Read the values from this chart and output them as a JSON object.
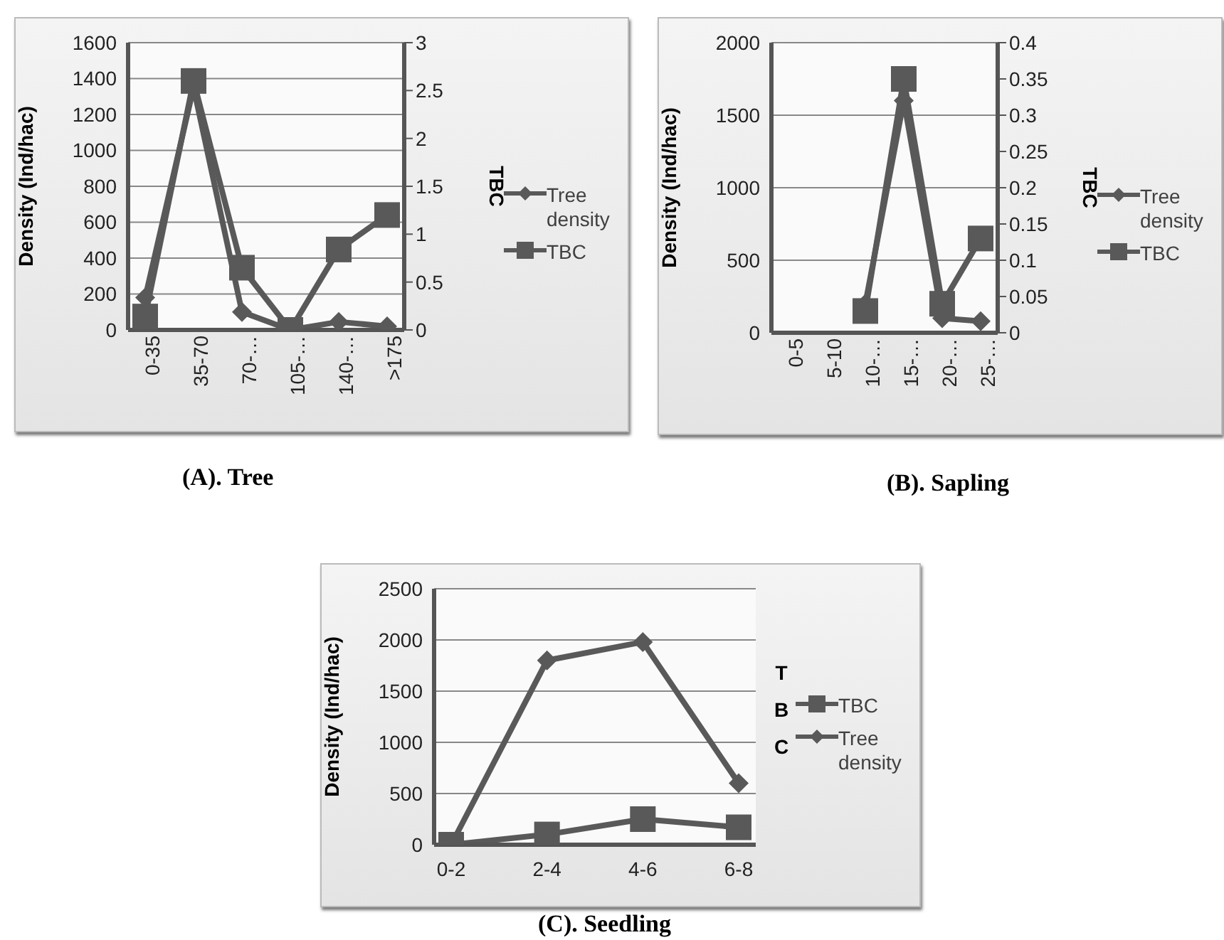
{
  "chart_data": [
    {
      "type": "line",
      "title": "(A). Tree",
      "ylabel": "Density (Ind/hac)",
      "y2label": "TBC",
      "categories": [
        "0-35",
        "35-70",
        "70-…",
        "105-…",
        "140-…",
        ">175"
      ],
      "series": [
        {
          "name": "Tree density",
          "color": "#595959",
          "marker": "diamond",
          "values": [
            180,
            1350,
            100,
            0,
            45,
            20
          ]
        },
        {
          "name": "TBC",
          "color": "#595959",
          "marker": "square",
          "axis": "y2",
          "values": [
            0.14,
            2.6,
            0.65,
            0,
            0.84,
            1.2
          ]
        }
      ],
      "ylim": [
        0,
        1600
      ],
      "yticks": [
        0,
        200,
        400,
        600,
        800,
        1000,
        1200,
        1400,
        1600
      ],
      "y2lim": [
        0,
        3
      ],
      "y2ticks": [
        0,
        0.5,
        1,
        1.5,
        2,
        2.5,
        3
      ],
      "grid": "y",
      "legend": "right"
    },
    {
      "type": "line",
      "title": "(B). Sapling",
      "ylabel": "Density (Ind/hac)",
      "y2label": "TBC",
      "categories": [
        "0-5",
        "5-10",
        "10-…",
        "15-…",
        "20-…",
        "25-…"
      ],
      "series": [
        {
          "name": "Tree density",
          "color": "#595959",
          "marker": "diamond",
          "values": [
            null,
            null,
            200,
            1600,
            100,
            80
          ]
        },
        {
          "name": "TBC",
          "color": "#595959",
          "marker": "square",
          "axis": "y2",
          "values": [
            null,
            null,
            0.03,
            0.35,
            0.04,
            0.13
          ]
        }
      ],
      "ylim": [
        0,
        2000
      ],
      "yticks": [
        0,
        500,
        1000,
        1500,
        2000
      ],
      "y2lim": [
        0,
        0.4
      ],
      "y2ticks": [
        0,
        0.05,
        0.1,
        0.15,
        0.2,
        0.25,
        0.3,
        0.35,
        0.4
      ],
      "grid": "y",
      "legend": "right"
    },
    {
      "type": "line",
      "title": "(C). Seedling",
      "ylabel": "Density (Ind/hac)",
      "y2label": "TBC",
      "categories": [
        "0-2",
        "2-4",
        "4-6",
        "6-8"
      ],
      "series": [
        {
          "name": "TBC",
          "color": "#595959",
          "marker": "square",
          "values": [
            0,
            100,
            250,
            170
          ]
        },
        {
          "name": "Tree density",
          "color": "#595959",
          "marker": "diamond",
          "values": [
            0,
            1800,
            1980,
            600
          ]
        }
      ],
      "ylim": [
        0,
        2500
      ],
      "yticks": [
        0,
        500,
        1000,
        1500,
        2000,
        2500
      ],
      "grid": "y",
      "legend": "right"
    }
  ]
}
